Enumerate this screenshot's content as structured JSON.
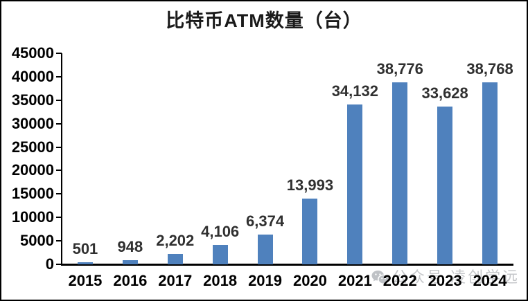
{
  "title": "比特币ATM数量（台）",
  "watermark": {
    "icon": "wechat-icon",
    "text": "公众号 凌创学远"
  },
  "colors": {
    "bar": "#4F81BD",
    "axis": "#000000",
    "title_text": "#1a1a1a",
    "data_label_text": "#303030",
    "tick_label_text": "#000000",
    "watermark_grey": "#c5c7ca",
    "background": "#ffffff",
    "frame_border": "#000000"
  },
  "chart_data": {
    "type": "bar",
    "title": "比特币ATM数量（台）",
    "categories": [
      "2015",
      "2016",
      "2017",
      "2018",
      "2019",
      "2020",
      "2021",
      "2022",
      "2023",
      "2024"
    ],
    "values": [
      501,
      948,
      2202,
      4106,
      6374,
      13993,
      34132,
      38776,
      33628,
      38768
    ],
    "value_labels": [
      "501",
      "948",
      "2,202",
      "4,106",
      "6,374",
      "13,993",
      "34,132",
      "38,776",
      "33,628",
      "38,768"
    ],
    "xlabel": "",
    "ylabel": "",
    "ylim": [
      0,
      45000
    ],
    "y_ticks": [
      0,
      5000,
      10000,
      15000,
      20000,
      25000,
      30000,
      35000,
      40000,
      45000
    ],
    "y_tick_labels": [
      "0",
      "5000",
      "10000",
      "15000",
      "20000",
      "25000",
      "30000",
      "35000",
      "40000",
      "45000"
    ],
    "grid": false,
    "legend": "none",
    "bar_color": "#4F81BD"
  }
}
